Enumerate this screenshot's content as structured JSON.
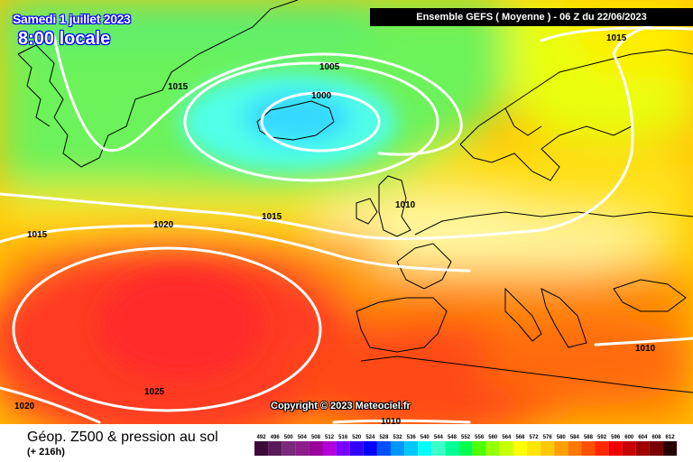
{
  "header": {
    "date": "Samedi 1 juillet 2023",
    "time": "8:00 locale",
    "run_info": "Ensemble GEFS  ( Moyenne )  -  06 Z du 22/06/2023"
  },
  "footer": {
    "title": "Géop. Z500 & pression au sol",
    "lead": "(+ 216h)",
    "copyright": "Copyright © 2023 Meteociel.fr"
  },
  "isobar_labels": [
    "1015",
    "1005",
    "1000",
    "1015",
    "1010",
    "1020",
    "1015",
    "1015",
    "1025",
    "1020",
    "1010",
    "1010"
  ],
  "scale": {
    "values": [
      "492",
      "496",
      "500",
      "504",
      "508",
      "512",
      "516",
      "520",
      "524",
      "528",
      "532",
      "536",
      "540",
      "544",
      "548",
      "552",
      "556",
      "560",
      "564",
      "568",
      "572",
      "576",
      "580",
      "584",
      "588",
      "592",
      "596",
      "600",
      "604",
      "608",
      "612"
    ],
    "colors": [
      "#3b0a3b",
      "#5a1a5a",
      "#7a2a7a",
      "#8c1e8c",
      "#9a009a",
      "#b400d8",
      "#7a00ff",
      "#3200ff",
      "#0000ff",
      "#0050ff",
      "#0096ff",
      "#00c8ff",
      "#00ffff",
      "#3cffc8",
      "#00ff96",
      "#00ff50",
      "#50ff00",
      "#96ff00",
      "#c8ff00",
      "#ffff00",
      "#ffe600",
      "#ffc800",
      "#ffa000",
      "#ff7800",
      "#ff5000",
      "#ff2800",
      "#f00000",
      "#c80000",
      "#a00000",
      "#780000",
      "#280000"
    ]
  },
  "colors": {
    "label_outline": "#0000ff",
    "isobar": "#ffffff",
    "coast": "#000000"
  }
}
